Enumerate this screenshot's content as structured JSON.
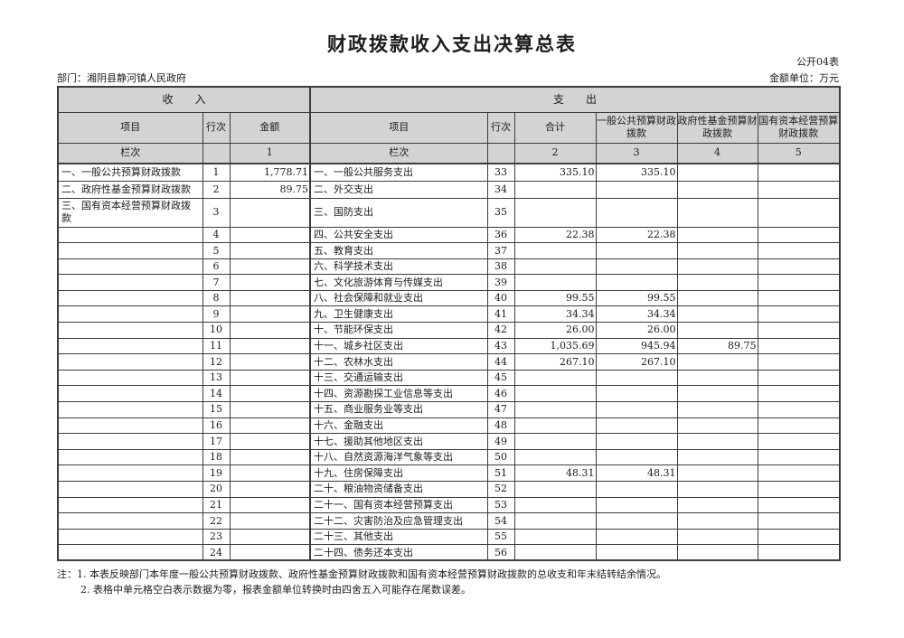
{
  "title": "财政拨款收入支出决算总表",
  "table_code": "公开04表",
  "department_label": "部门：湘阴县静河镇人民政府",
  "unit_label": "金额单位：万元",
  "income": {
    "section_title": "收　　入",
    "headers": [
      "项目",
      "行次",
      "金额"
    ],
    "column_index_row": [
      "栏次",
      "",
      "1"
    ],
    "rows": [
      {
        "item": "一、一般公共预算财政拨款",
        "line": "1",
        "amount": "1,778.71"
      },
      {
        "item": "二、政府性基金预算财政拨款",
        "line": "2",
        "amount": "89.75"
      },
      {
        "item": "三、国有资本经营预算财政拨款",
        "line": "3",
        "amount": ""
      },
      {
        "item": "",
        "line": "4",
        "amount": ""
      },
      {
        "item": "",
        "line": "5",
        "amount": ""
      },
      {
        "item": "",
        "line": "6",
        "amount": ""
      },
      {
        "item": "",
        "line": "7",
        "amount": ""
      },
      {
        "item": "",
        "line": "8",
        "amount": ""
      },
      {
        "item": "",
        "line": "9",
        "amount": ""
      },
      {
        "item": "",
        "line": "10",
        "amount": ""
      },
      {
        "item": "",
        "line": "11",
        "amount": ""
      },
      {
        "item": "",
        "line": "12",
        "amount": ""
      },
      {
        "item": "",
        "line": "13",
        "amount": ""
      },
      {
        "item": "",
        "line": "14",
        "amount": ""
      },
      {
        "item": "",
        "line": "15",
        "amount": ""
      },
      {
        "item": "",
        "line": "16",
        "amount": ""
      },
      {
        "item": "",
        "line": "17",
        "amount": ""
      },
      {
        "item": "",
        "line": "18",
        "amount": ""
      },
      {
        "item": "",
        "line": "19",
        "amount": ""
      },
      {
        "item": "",
        "line": "20",
        "amount": ""
      },
      {
        "item": "",
        "line": "21",
        "amount": ""
      },
      {
        "item": "",
        "line": "22",
        "amount": ""
      },
      {
        "item": "",
        "line": "23",
        "amount": ""
      },
      {
        "item": "",
        "line": "24",
        "amount": ""
      }
    ]
  },
  "expenditure": {
    "section_title": "支　　出",
    "headers": [
      "项目",
      "行次",
      "合计",
      "一般公共预算财政拨款",
      "政府性基金预算财政拨款",
      "国有资本经营预算财政拨款"
    ],
    "column_index_row": [
      "栏次",
      "",
      "2",
      "3",
      "4",
      "5"
    ],
    "rows": [
      {
        "item": "一、一般公共服务支出",
        "line": "33",
        "total": "335.10",
        "general_public": "335.10",
        "gov_fund": "",
        "state_capital": ""
      },
      {
        "item": "二、外交支出",
        "line": "34",
        "total": "",
        "general_public": "",
        "gov_fund": "",
        "state_capital": ""
      },
      {
        "item": "三、国防支出",
        "line": "35",
        "total": "",
        "general_public": "",
        "gov_fund": "",
        "state_capital": ""
      },
      {
        "item": "四、公共安全支出",
        "line": "36",
        "total": "22.38",
        "general_public": "22.38",
        "gov_fund": "",
        "state_capital": ""
      },
      {
        "item": "五、教育支出",
        "line": "37",
        "total": "",
        "general_public": "",
        "gov_fund": "",
        "state_capital": ""
      },
      {
        "item": "六、科学技术支出",
        "line": "38",
        "total": "",
        "general_public": "",
        "gov_fund": "",
        "state_capital": ""
      },
      {
        "item": "七、文化旅游体育与传媒支出",
        "line": "39",
        "total": "",
        "general_public": "",
        "gov_fund": "",
        "state_capital": ""
      },
      {
        "item": "八、社会保障和就业支出",
        "line": "40",
        "total": "99.55",
        "general_public": "99.55",
        "gov_fund": "",
        "state_capital": ""
      },
      {
        "item": "九、卫生健康支出",
        "line": "41",
        "total": "34.34",
        "general_public": "34.34",
        "gov_fund": "",
        "state_capital": ""
      },
      {
        "item": "十、节能环保支出",
        "line": "42",
        "total": "26.00",
        "general_public": "26.00",
        "gov_fund": "",
        "state_capital": ""
      },
      {
        "item": "十一、城乡社区支出",
        "line": "43",
        "total": "1,035.69",
        "general_public": "945.94",
        "gov_fund": "89.75",
        "state_capital": ""
      },
      {
        "item": "十二、农林水支出",
        "line": "44",
        "total": "267.10",
        "general_public": "267.10",
        "gov_fund": "",
        "state_capital": ""
      },
      {
        "item": "十三、交通运输支出",
        "line": "45",
        "total": "",
        "general_public": "",
        "gov_fund": "",
        "state_capital": ""
      },
      {
        "item": "十四、资源勘探工业信息等支出",
        "line": "46",
        "total": "",
        "general_public": "",
        "gov_fund": "",
        "state_capital": ""
      },
      {
        "item": "十五、商业服务业等支出",
        "line": "47",
        "total": "",
        "general_public": "",
        "gov_fund": "",
        "state_capital": ""
      },
      {
        "item": "十六、金融支出",
        "line": "48",
        "total": "",
        "general_public": "",
        "gov_fund": "",
        "state_capital": ""
      },
      {
        "item": "十七、援助其他地区支出",
        "line": "49",
        "total": "",
        "general_public": "",
        "gov_fund": "",
        "state_capital": ""
      },
      {
        "item": "十八、自然资源海洋气象等支出",
        "line": "50",
        "total": "",
        "general_public": "",
        "gov_fund": "",
        "state_capital": ""
      },
      {
        "item": "十九、住房保障支出",
        "line": "51",
        "total": "48.31",
        "general_public": "48.31",
        "gov_fund": "",
        "state_capital": ""
      },
      {
        "item": "二十、粮油物资储备支出",
        "line": "52",
        "total": "",
        "general_public": "",
        "gov_fund": "",
        "state_capital": ""
      },
      {
        "item": "二十一、国有资本经营预算支出",
        "line": "53",
        "total": "",
        "general_public": "",
        "gov_fund": "",
        "state_capital": ""
      },
      {
        "item": "二十二、灾害防治及应急管理支出",
        "line": "54",
        "total": "",
        "general_public": "",
        "gov_fund": "",
        "state_capital": ""
      },
      {
        "item": "二十三、其他支出",
        "line": "55",
        "total": "",
        "general_public": "",
        "gov_fund": "",
        "state_capital": ""
      },
      {
        "item": "二十四、债务还本支出",
        "line": "56",
        "total": "",
        "general_public": "",
        "gov_fund": "",
        "state_capital": ""
      }
    ]
  },
  "notes": [
    "注：1. 本表反映部门本年度一般公共预算财政拨款、政府性基金预算财政拨款和国有资本经营预算财政拨款的总收支和年末结转结余情况。",
    "2. 表格中单元格空白表示数据为零，报表金额单位转换时由四舍五入可能存在尾数误差。"
  ]
}
